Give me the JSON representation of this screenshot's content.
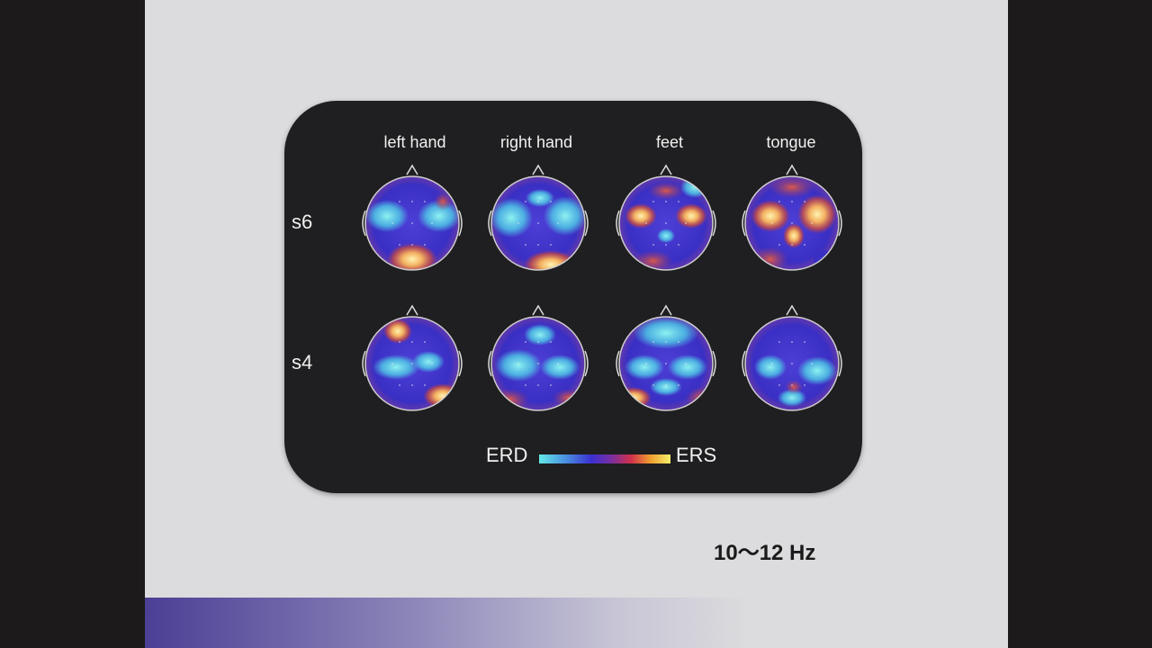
{
  "figure": {
    "columns": [
      "left   hand",
      "right hand",
      "feet",
      "tongue"
    ],
    "rows": [
      "s6",
      "s4"
    ],
    "colorbar": {
      "left": "ERD",
      "right": "ERS"
    }
  },
  "caption": "10～12 Hz"
}
